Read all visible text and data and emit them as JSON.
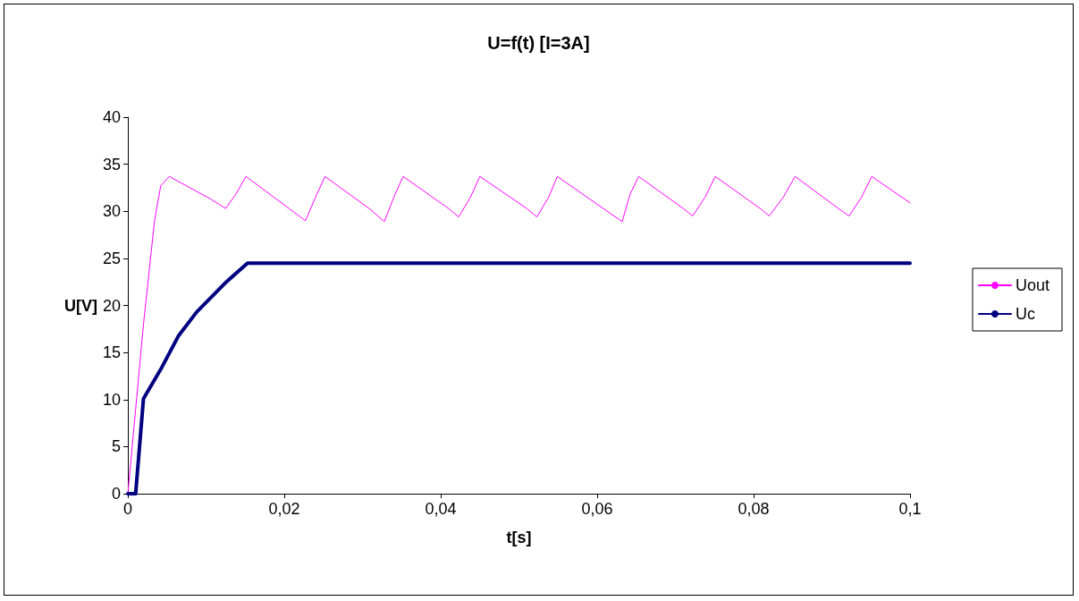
{
  "chart_data": {
    "type": "line",
    "title": "U=f(t) [I=3A]",
    "xlabel": "t[s]",
    "ylabel": "U[V]",
    "xlim": [
      0,
      0.1
    ],
    "xticks": [
      0,
      {
        "value": 0.02,
        "label": "0,02"
      },
      {
        "value": 0.04,
        "label": "0,04"
      },
      {
        "value": 0.06,
        "label": "0,06"
      },
      {
        "value": 0.08,
        "label": "0,08"
      },
      {
        "value": 0.1,
        "label": "0,1"
      }
    ],
    "ylim": [
      0,
      40
    ],
    "yticks": [
      0,
      5,
      10,
      15,
      20,
      25,
      30,
      35,
      40
    ],
    "grid": false,
    "legend": "right",
    "marker": "none",
    "line_style": "solid",
    "series": [
      {
        "name": "Uout",
        "color": "#ff00ff",
        "x": [
          0,
          0.001,
          0.002,
          0.0034,
          0.0042,
          0.0053,
          0.0106,
          0.0125,
          0.0138,
          0.0151,
          0.0206,
          0.0227,
          0.024,
          0.0252,
          0.031,
          0.0328,
          0.034,
          0.0352,
          0.041,
          0.0423,
          0.0438,
          0.045,
          0.051,
          0.0523,
          0.0538,
          0.0549,
          0.0632,
          0.0642,
          0.0653,
          0.071,
          0.0722,
          0.0738,
          0.0751,
          0.081,
          0.082,
          0.0838,
          0.0853,
          0.091,
          0.0922,
          0.0938,
          0.0951,
          0.1
        ],
        "values": [
          0,
          9,
          18,
          28.9,
          32.7,
          33.7,
          31.3,
          30.3,
          31.8,
          33.7,
          30.3,
          29.0,
          31.5,
          33.7,
          30.2,
          28.9,
          31.5,
          33.7,
          30.3,
          29.4,
          31.5,
          33.7,
          30.3,
          29.4,
          31.5,
          33.7,
          28.9,
          31.8,
          33.7,
          30.3,
          29.5,
          31.5,
          33.7,
          30.2,
          29.5,
          31.5,
          33.7,
          30.2,
          29.5,
          31.5,
          33.7,
          30.9
        ]
      },
      {
        "name": "Uc",
        "color": "#000080",
        "x": [
          0,
          0.001,
          0.002,
          0.0042,
          0.0065,
          0.0088,
          0.0126,
          0.0153,
          0.1
        ],
        "values": [
          0,
          0,
          10.1,
          13.2,
          16.8,
          19.3,
          22.5,
          24.5,
          24.5
        ]
      }
    ]
  }
}
